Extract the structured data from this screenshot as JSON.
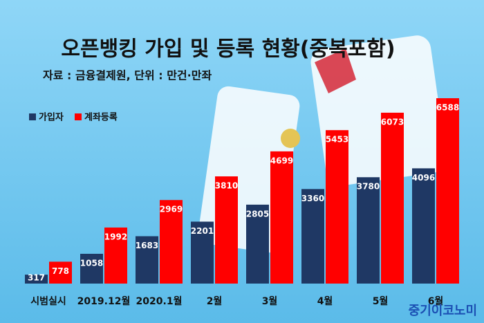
{
  "chart_data": {
    "type": "bar",
    "title": "오픈뱅킹 가입 및 등록 현황(중복포함)",
    "subtitle": "자료 : 금융결제원, 단위 : 만건·만좌",
    "watermark": "중기이코노미",
    "categories": [
      "시범실시",
      "2019.12월",
      "2020.1월",
      "2월",
      "3월",
      "4월",
      "5월",
      "6월"
    ],
    "series": [
      {
        "name": "가입자",
        "color": "#1f3864",
        "values": [
          317,
          1058,
          1683,
          2201,
          2805,
          3360,
          3780,
          4096
        ]
      },
      {
        "name": "계좌등록",
        "color": "#ff0000",
        "values": [
          778,
          1992,
          2969,
          3810,
          4699,
          5453,
          6073,
          6588
        ]
      }
    ],
    "legend": "top-left"
  }
}
